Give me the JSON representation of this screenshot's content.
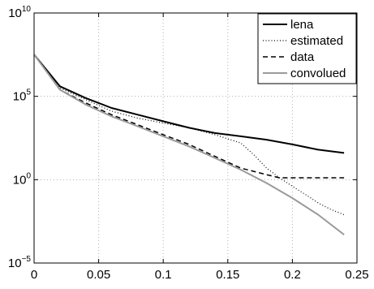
{
  "chart_data": {
    "type": "line",
    "title": "",
    "xlabel": "",
    "ylabel": "",
    "xlim": [
      0,
      0.25
    ],
    "ylim": [
      1e-05,
      10000000000.0
    ],
    "yscale": "log",
    "grid": true,
    "legend_position": "top-right",
    "x_ticks": [
      {
        "value": 0,
        "label": "0"
      },
      {
        "value": 0.05,
        "label": "0.05"
      },
      {
        "value": 0.1,
        "label": "0.1"
      },
      {
        "value": 0.15,
        "label": "0.15"
      },
      {
        "value": 0.2,
        "label": "0.2"
      },
      {
        "value": 0.25,
        "label": "0.25"
      }
    ],
    "y_ticks": [
      {
        "value": 1e-05,
        "base": "10",
        "exp": "−5"
      },
      {
        "value": 1,
        "base": "10",
        "exp": "0"
      },
      {
        "value": 100000.0,
        "base": "10",
        "exp": "5"
      },
      {
        "value": 10000000000.0,
        "base": "10",
        "exp": "10"
      }
    ],
    "series": [
      {
        "name": "lena",
        "color": "#000000",
        "dash": "solid",
        "width": 2,
        "points": [
          [
            0,
            32000000.0
          ],
          [
            0.02,
            400000.0
          ],
          [
            0.04,
            79000.0
          ],
          [
            0.06,
            20000.0
          ],
          [
            0.08,
            8000.0
          ],
          [
            0.1,
            3200.0
          ],
          [
            0.12,
            1300.0
          ],
          [
            0.14,
            630.0
          ],
          [
            0.16,
            400.0
          ],
          [
            0.18,
            250.0
          ],
          [
            0.2,
            130.0
          ],
          [
            0.22,
            63.0
          ],
          [
            0.24,
            40.0
          ]
        ]
      },
      {
        "name": "estimated",
        "color": "#000000",
        "dash": "dotted",
        "width": 1.2,
        "points": [
          [
            0,
            32000000.0
          ],
          [
            0.02,
            320000.0
          ],
          [
            0.04,
            63000.0
          ],
          [
            0.06,
            13000.0
          ],
          [
            0.08,
            5000.0
          ],
          [
            0.1,
            2500.0
          ],
          [
            0.12,
            1300.0
          ],
          [
            0.14,
            500.0
          ],
          [
            0.16,
            160.0
          ],
          [
            0.17,
            32.0
          ],
          [
            0.18,
            5.0
          ],
          [
            0.19,
            1.3
          ],
          [
            0.2,
            0.4
          ],
          [
            0.21,
            0.13
          ],
          [
            0.22,
            0.04
          ],
          [
            0.23,
            0.016
          ],
          [
            0.24,
            0.0079
          ]
        ]
      },
      {
        "name": "data",
        "color": "#000000",
        "dash": "dashed",
        "width": 1.5,
        "points": [
          [
            0,
            32000000.0
          ],
          [
            0.02,
            250000.0
          ],
          [
            0.04,
            40000.0
          ],
          [
            0.06,
            7900.0
          ],
          [
            0.08,
            2000.0
          ],
          [
            0.1,
            500.0
          ],
          [
            0.12,
            130.0
          ],
          [
            0.14,
            25.0
          ],
          [
            0.16,
            5.0
          ],
          [
            0.18,
            2.0
          ],
          [
            0.19,
            1.3
          ],
          [
            0.2,
            1.3
          ],
          [
            0.22,
            1.3
          ],
          [
            0.24,
            1.3
          ]
        ]
      },
      {
        "name": "convolued",
        "color": "#9a9a9a",
        "dash": "solid",
        "width": 2,
        "points": [
          [
            0,
            32000000.0
          ],
          [
            0.02,
            250000.0
          ],
          [
            0.04,
            32000.0
          ],
          [
            0.06,
            6300.0
          ],
          [
            0.08,
            1600.0
          ],
          [
            0.1,
            400.0
          ],
          [
            0.12,
            100.0
          ],
          [
            0.14,
            20.0
          ],
          [
            0.16,
            4.0
          ],
          [
            0.18,
            0.63
          ],
          [
            0.2,
            0.079
          ],
          [
            0.22,
            0.0079
          ],
          [
            0.24,
            0.0005
          ]
        ]
      }
    ]
  }
}
